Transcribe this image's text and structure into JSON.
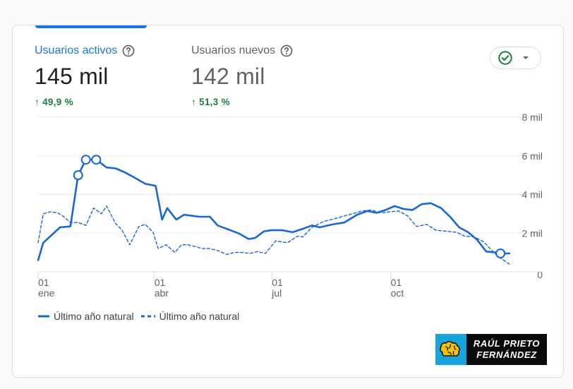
{
  "colors": {
    "accent": "#1a73e8",
    "series_primary": "#1967d2",
    "positive": "#188038",
    "muted_text": "#5f6368",
    "grid": "#e8eaed"
  },
  "metrics": [
    {
      "label": "Usuarios activos",
      "value": "145 mil",
      "change": "49,9 %",
      "icon": "help-circle-icon",
      "selected": true
    },
    {
      "label": "Usuarios nuevos",
      "value": "142 mil",
      "change": "51,3 %",
      "icon": "help-circle-icon",
      "selected": false
    }
  ],
  "status_control": {
    "icon": "check-circle-icon",
    "dropdown_icon": "caret-down-icon"
  },
  "chart_data": {
    "type": "line",
    "y_ticks": [
      "8 mil",
      "6 mil",
      "4 mil",
      "2 mil",
      "0"
    ],
    "ylim": [
      0,
      8000
    ],
    "x_ticks": [
      {
        "day": "01",
        "month": "ene",
        "x": 0
      },
      {
        "day": "01",
        "month": "abr",
        "x": 90
      },
      {
        "day": "01",
        "month": "jul",
        "x": 181
      },
      {
        "day": "01",
        "month": "oct",
        "x": 273
      }
    ],
    "xlim": [
      0,
      365
    ],
    "series": [
      {
        "name": "Último año natural",
        "style": "solid",
        "x": [
          0,
          4,
          17,
          25,
          31,
          37,
          45,
          53,
          60,
          67,
          74,
          83,
          91,
          96,
          100,
          107,
          113,
          119,
          125,
          133,
          139,
          147,
          155,
          163,
          168,
          175,
          181,
          189,
          197,
          204,
          212,
          218,
          228,
          237,
          247,
          255,
          262,
          269,
          276,
          283,
          290,
          297,
          304,
          312,
          319,
          326,
          333,
          340,
          347,
          354,
          358,
          365
        ],
        "y": [
          600,
          1500,
          2300,
          2350,
          5000,
          5800,
          5800,
          5400,
          5350,
          5150,
          4900,
          4550,
          4450,
          2700,
          3300,
          2700,
          2950,
          2900,
          2850,
          2850,
          2400,
          2200,
          2000,
          1700,
          1750,
          2100,
          2150,
          2150,
          2050,
          2200,
          2400,
          2300,
          2450,
          2550,
          2950,
          3150,
          3050,
          3200,
          3400,
          3250,
          3200,
          3500,
          3550,
          3300,
          2850,
          2300,
          2050,
          1650,
          1050,
          1000,
          950,
          950
        ]
      },
      {
        "name": "Último año natural",
        "style": "dashed",
        "x": [
          0,
          4,
          9,
          15,
          19,
          25,
          31,
          37,
          43,
          49,
          53,
          60,
          65,
          71,
          78,
          83,
          89,
          93,
          99,
          106,
          111,
          116,
          122,
          127,
          133,
          139,
          146,
          152,
          158,
          164,
          170,
          176,
          184,
          193,
          201,
          205,
          212,
          221,
          227,
          235,
          243,
          251,
          258,
          265,
          272,
          279,
          286,
          293,
          301,
          308,
          316,
          324,
          330,
          338,
          345,
          350,
          356,
          365
        ],
        "y": [
          1500,
          3000,
          3100,
          3050,
          2900,
          2550,
          2550,
          2400,
          3300,
          3000,
          3400,
          2500,
          2150,
          1400,
          2350,
          2450,
          2050,
          1200,
          1400,
          1000,
          1400,
          1400,
          1300,
          1200,
          1200,
          1100,
          900,
          1000,
          1000,
          950,
          1050,
          950,
          1600,
          1500,
          1850,
          1800,
          2300,
          2600,
          2700,
          2850,
          3000,
          3150,
          3200,
          3050,
          3100,
          3150,
          2900,
          2350,
          2450,
          2150,
          2100,
          2050,
          1850,
          1800,
          1550,
          1200,
          800,
          400
        ]
      }
    ],
    "highlight_points": [
      {
        "series": 0,
        "x": 31,
        "y": 5000
      },
      {
        "series": 0,
        "x": 37,
        "y": 5800
      },
      {
        "series": 0,
        "x": 45,
        "y": 5800
      },
      {
        "series": 0,
        "x": 358,
        "y": 950
      }
    ],
    "legend": [
      "Último año natural",
      "Último año natural"
    ],
    "legend_position": "bottom-left",
    "grid": true
  },
  "branding": {
    "line1": "RAÚL PRIETO",
    "line2": "FERNÁNDEZ",
    "icon": "brain-gear-icon"
  }
}
